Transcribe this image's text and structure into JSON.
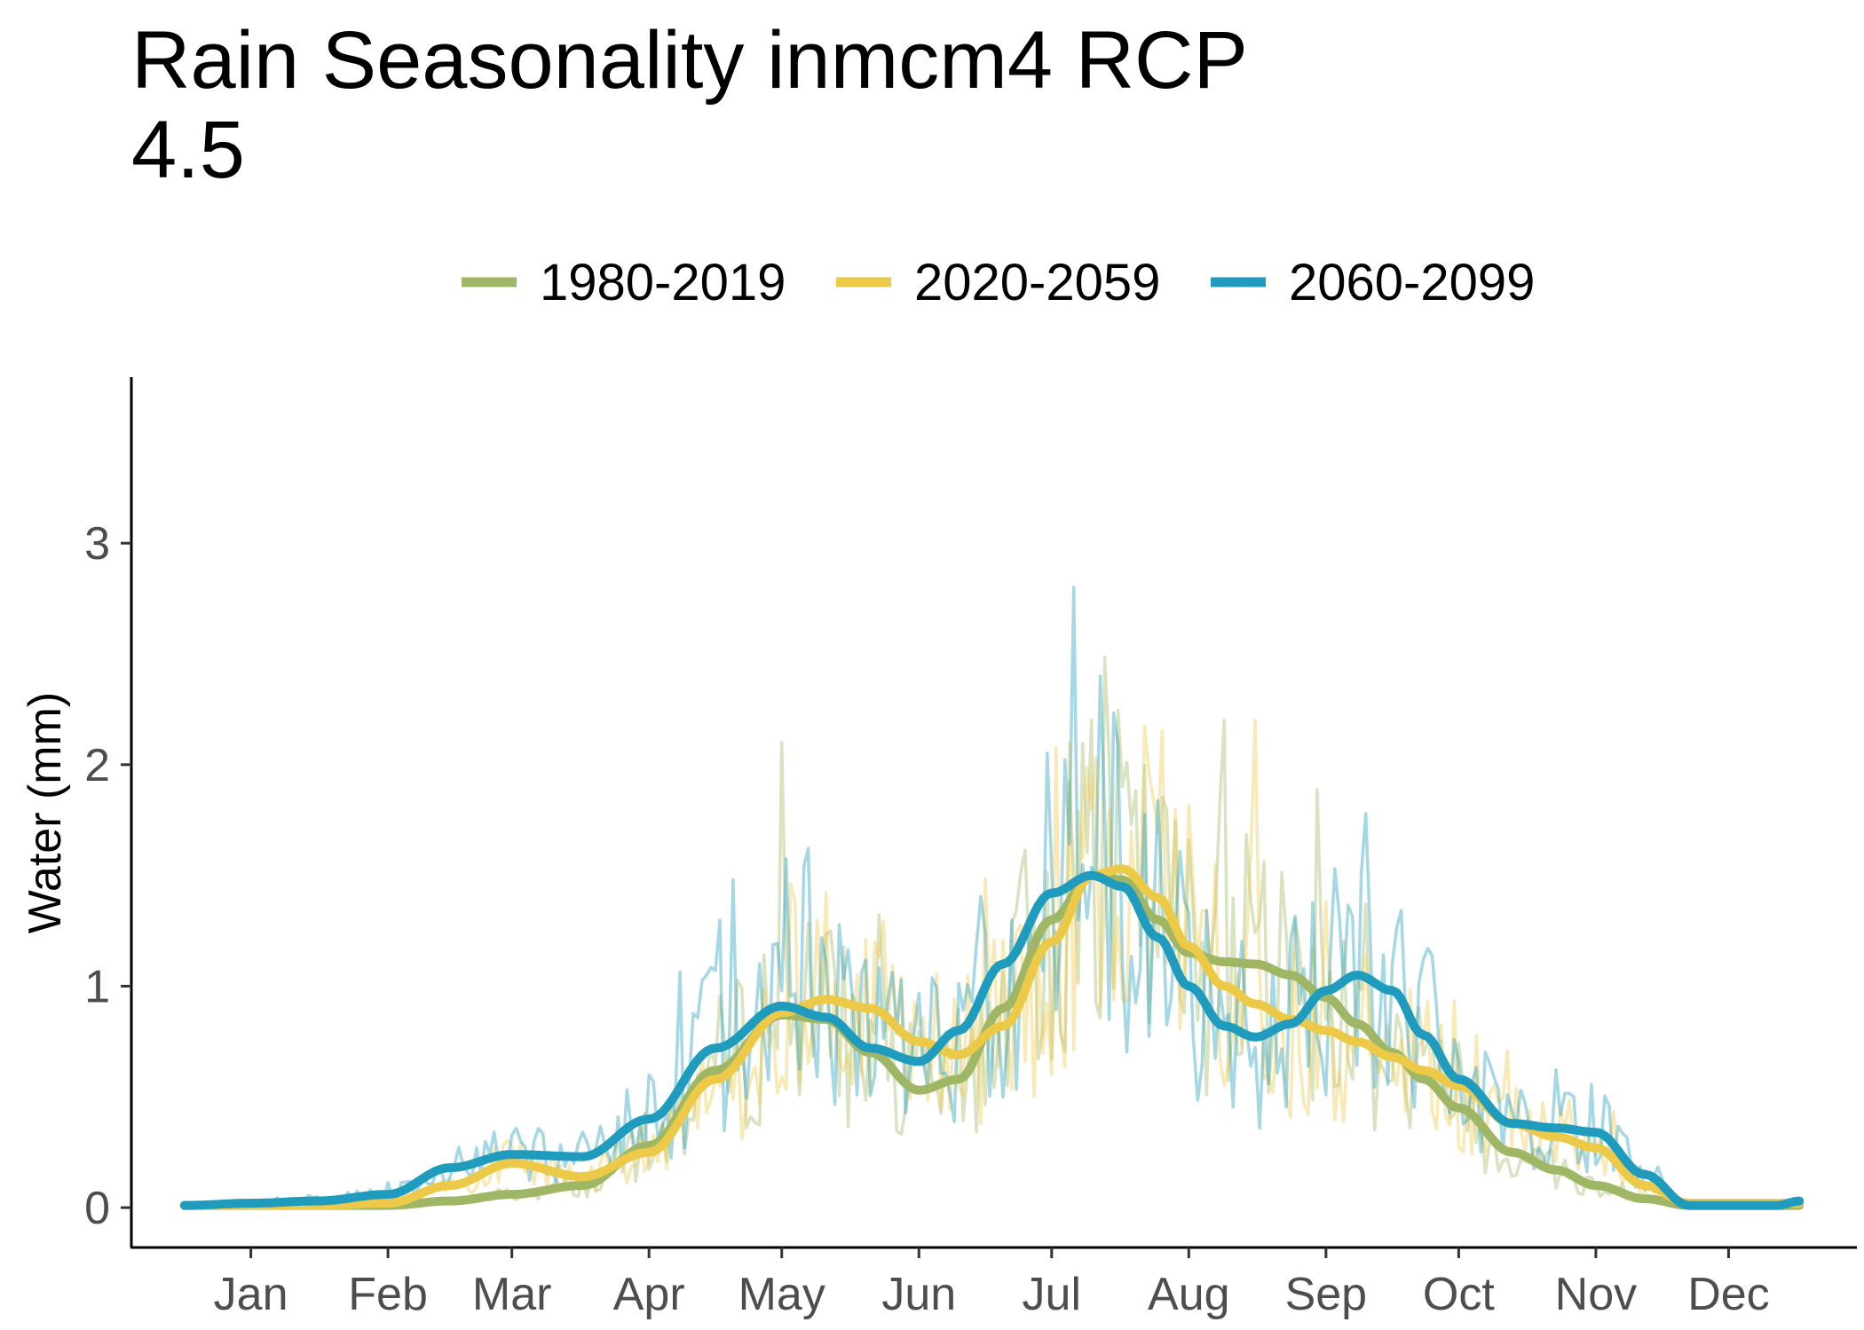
{
  "chart_data": {
    "type": "line",
    "title_lines": [
      "Rain Seasonality inmcm4 RCP",
      "4.5"
    ],
    "xlabel": "",
    "ylabel": "Water (mm)",
    "x_unit": "day of year",
    "xlim": [
      -12,
      378
    ],
    "ylim": [
      -0.18,
      3.75
    ],
    "x_ticks": [
      {
        "label": "Jan",
        "day": 15
      },
      {
        "label": "Feb",
        "day": 46
      },
      {
        "label": "Mar",
        "day": 74
      },
      {
        "label": "Apr",
        "day": 105
      },
      {
        "label": "May",
        "day": 135
      },
      {
        "label": "Jun",
        "day": 166
      },
      {
        "label": "Jul",
        "day": 196
      },
      {
        "label": "Aug",
        "day": 227
      },
      {
        "label": "Sep",
        "day": 258
      },
      {
        "label": "Oct",
        "day": 288
      },
      {
        "label": "Nov",
        "day": 319
      },
      {
        "label": "Dec",
        "day": 349
      }
    ],
    "y_ticks": [
      0,
      1,
      2,
      3
    ],
    "grid": false,
    "legend_position": "top",
    "series": [
      {
        "name": "1980-2019",
        "color": "#9fb665",
        "x": [
          0,
          15,
          30,
          46,
          60,
          74,
          90,
          105,
          120,
          135,
          145,
          155,
          166,
          175,
          185,
          196,
          205,
          212,
          220,
          227,
          235,
          242,
          250,
          258,
          265,
          273,
          280,
          288,
          300,
          310,
          319,
          330,
          340,
          349,
          360,
          365
        ],
        "smooth": [
          0.01,
          0.01,
          0.01,
          0.01,
          0.03,
          0.06,
          0.1,
          0.28,
          0.62,
          0.87,
          0.85,
          0.7,
          0.53,
          0.58,
          0.9,
          1.3,
          1.5,
          1.48,
          1.3,
          1.15,
          1.11,
          1.1,
          1.05,
          0.95,
          0.83,
          0.7,
          0.58,
          0.45,
          0.25,
          0.17,
          0.1,
          0.04,
          0.01,
          0.01,
          0.01,
          0.01
        ],
        "daily_peak": [
          {
            "x": 205,
            "y": 2.2
          },
          {
            "x": 235,
            "y": 2.2
          },
          {
            "x": 135,
            "y": 2.1
          }
        ]
      },
      {
        "name": "2020-2059",
        "color": "#edc948",
        "x": [
          0,
          15,
          30,
          46,
          60,
          74,
          90,
          105,
          120,
          135,
          145,
          155,
          166,
          175,
          185,
          196,
          205,
          212,
          220,
          227,
          235,
          242,
          250,
          258,
          265,
          273,
          280,
          288,
          300,
          310,
          319,
          330,
          340,
          349,
          360,
          365
        ],
        "smooth": [
          0.01,
          0.01,
          0.01,
          0.02,
          0.1,
          0.2,
          0.14,
          0.25,
          0.58,
          0.88,
          0.94,
          0.9,
          0.75,
          0.69,
          0.82,
          1.2,
          1.5,
          1.53,
          1.4,
          1.18,
          1.0,
          0.92,
          0.85,
          0.8,
          0.75,
          0.68,
          0.62,
          0.55,
          0.38,
          0.32,
          0.27,
          0.1,
          0.02,
          0.02,
          0.02,
          0.02
        ],
        "daily_peak": [
          {
            "x": 242,
            "y": 2.2
          },
          {
            "x": 200,
            "y": 2.1
          }
        ]
      },
      {
        "name": "2060-2099",
        "color": "#1f9bbd",
        "x": [
          0,
          15,
          30,
          46,
          60,
          74,
          90,
          105,
          120,
          135,
          145,
          155,
          166,
          175,
          185,
          196,
          205,
          212,
          220,
          227,
          235,
          242,
          250,
          258,
          265,
          273,
          280,
          288,
          300,
          310,
          319,
          330,
          340,
          349,
          360,
          365
        ],
        "smooth": [
          0.01,
          0.02,
          0.03,
          0.06,
          0.18,
          0.24,
          0.23,
          0.4,
          0.72,
          0.91,
          0.86,
          0.72,
          0.66,
          0.8,
          1.1,
          1.42,
          1.5,
          1.45,
          1.22,
          1.0,
          0.82,
          0.77,
          0.83,
          0.98,
          1.05,
          0.98,
          0.78,
          0.58,
          0.38,
          0.36,
          0.34,
          0.15,
          0.01,
          0.01,
          0.01,
          0.03
        ],
        "daily_peak": [
          {
            "x": 201,
            "y": 2.8
          },
          {
            "x": 207,
            "y": 2.4
          }
        ]
      }
    ]
  }
}
